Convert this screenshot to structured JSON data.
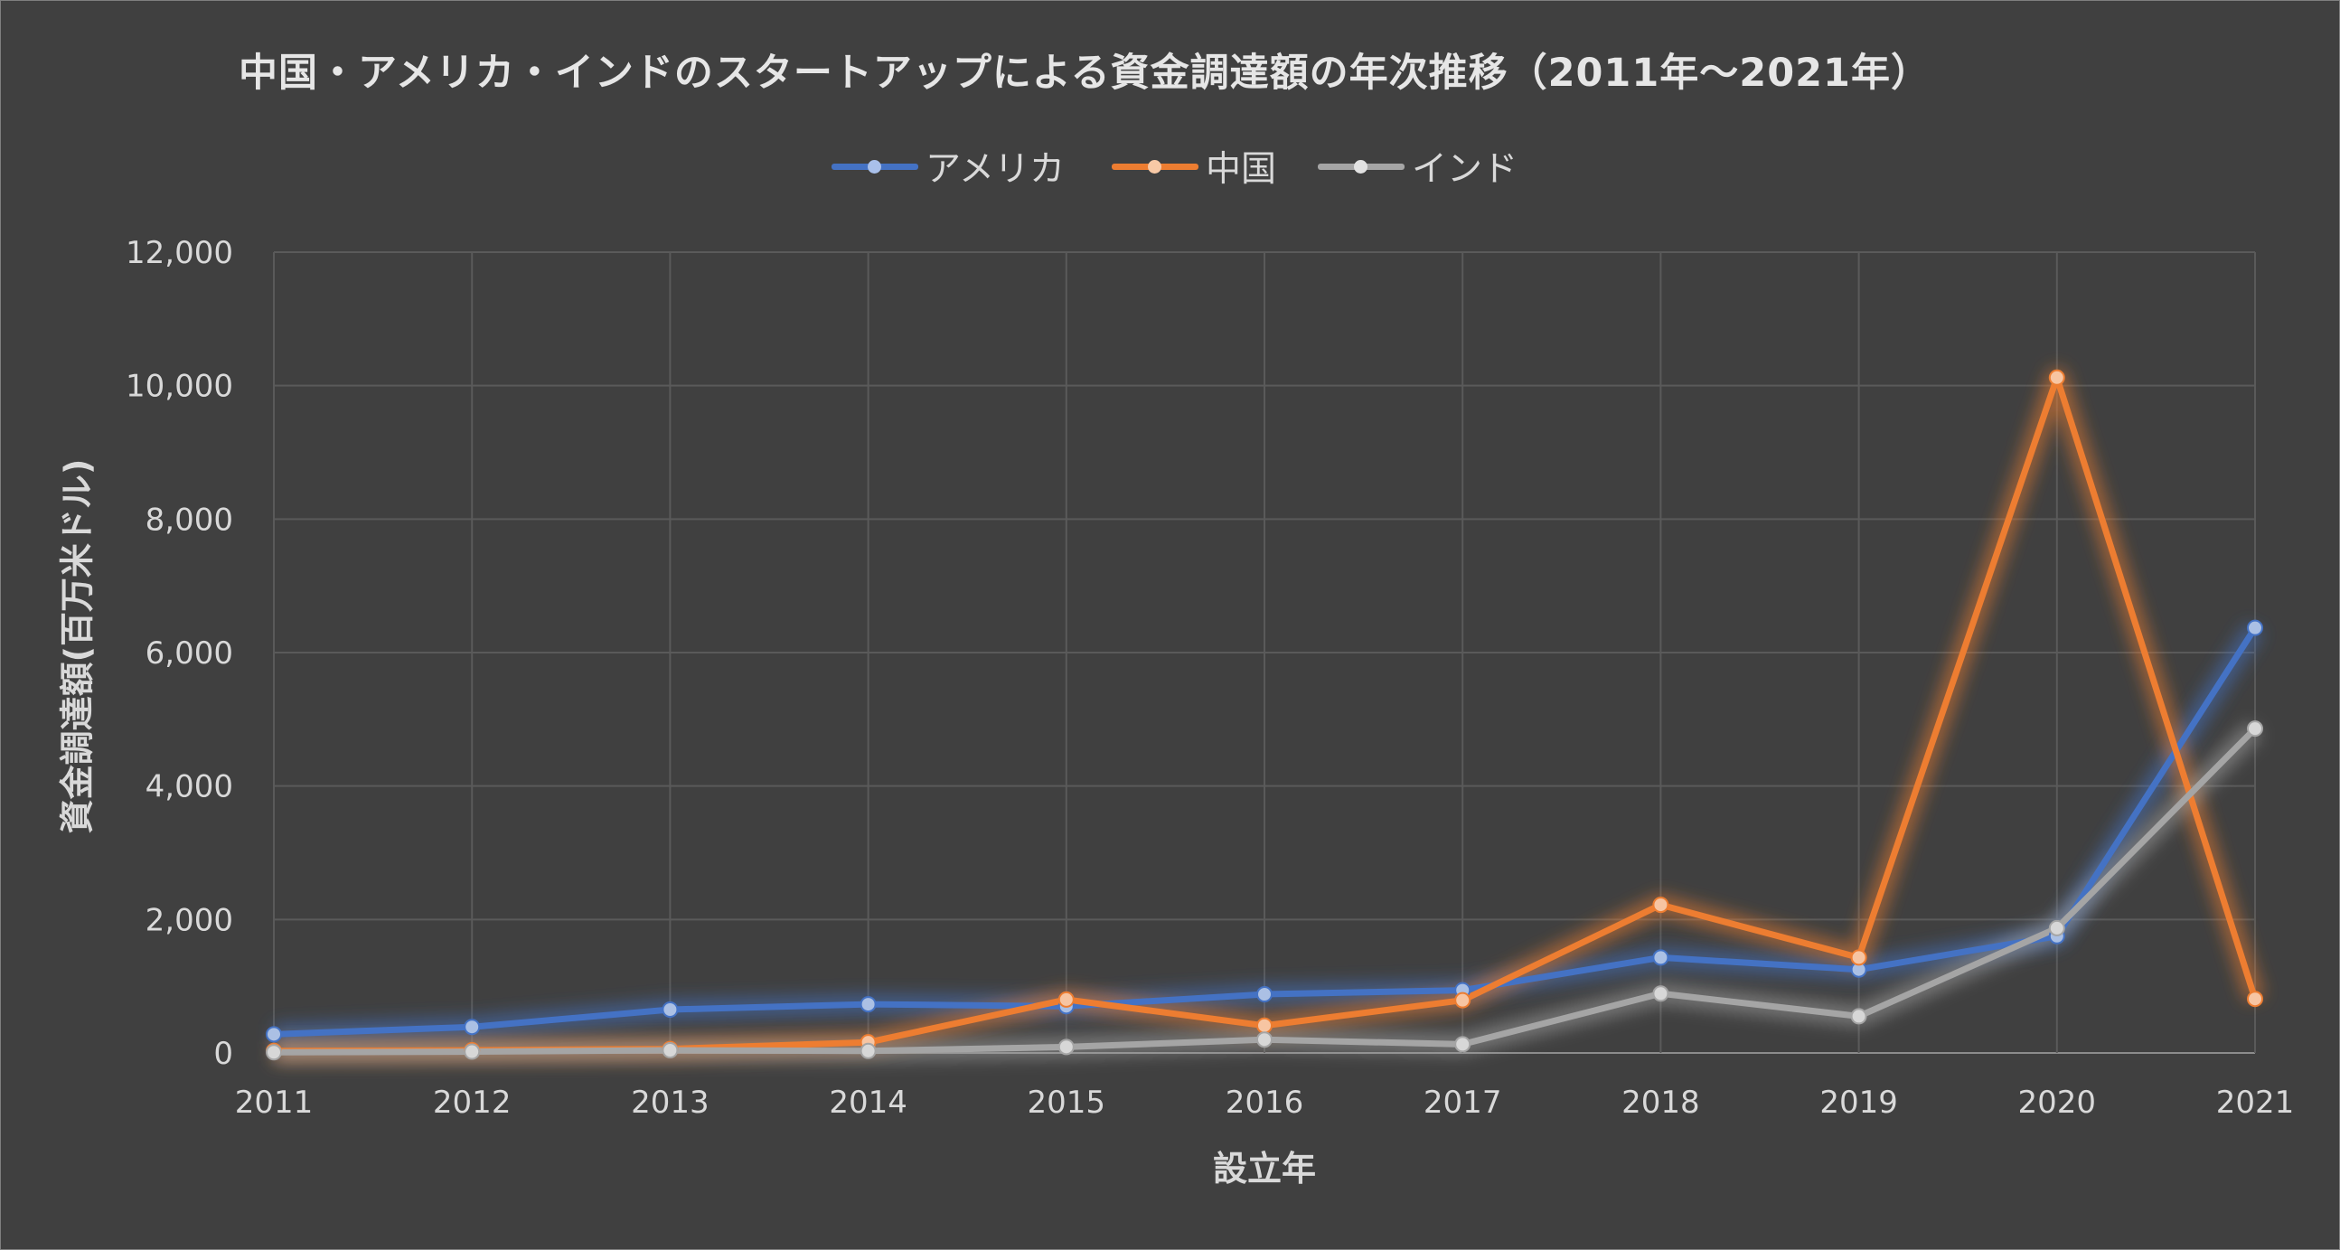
{
  "chart_data": {
    "type": "line",
    "title": "中国・アメリカ・インドのスタートアップによる資金調達額の年次推移（2011年～2021年）",
    "xlabel": "設立年",
    "ylabel": "資金調達額(百万米ドル)",
    "categories": [
      "2011",
      "2012",
      "2013",
      "2014",
      "2015",
      "2016",
      "2017",
      "2018",
      "2019",
      "2020",
      "2021"
    ],
    "ylim": [
      0,
      12000
    ],
    "yticks": [
      0,
      2000,
      4000,
      6000,
      8000,
      10000,
      12000
    ],
    "ytick_labels": [
      "0",
      "2,000",
      "4,000",
      "6,000",
      "8,000",
      "10,000",
      "12,000"
    ],
    "grid": true,
    "legend_position": "top-center",
    "series": [
      {
        "name": "アメリカ",
        "color": "#4472c4",
        "values": [
          280,
          390,
          650,
          730,
          700,
          880,
          940,
          1430,
          1250,
          1750,
          6370
        ]
      },
      {
        "name": "中国",
        "color": "#ed7d31",
        "values": [
          30,
          40,
          60,
          160,
          800,
          410,
          790,
          2220,
          1430,
          10120,
          810
        ]
      },
      {
        "name": "インド",
        "color": "#a5a5a5",
        "values": [
          10,
          20,
          40,
          30,
          90,
          200,
          130,
          890,
          550,
          1870,
          4860
        ]
      }
    ]
  }
}
